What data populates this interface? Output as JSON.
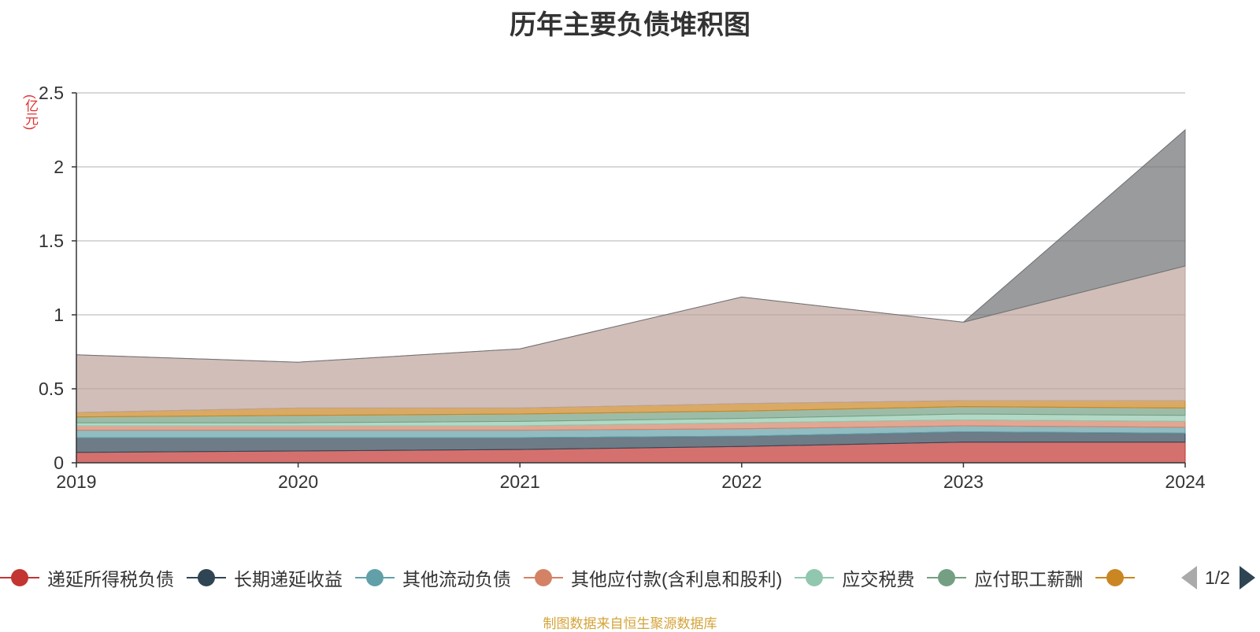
{
  "chart_data": {
    "type": "area",
    "stacked": true,
    "title": "历年主要负债堆积图",
    "unit_label": "(亿元)",
    "x": [
      "2019",
      "2020",
      "2021",
      "2022",
      "2023",
      "2024"
    ],
    "ylim": [
      0,
      2.5
    ],
    "yticks": [
      "0",
      "0.5",
      "1",
      "1.5",
      "2",
      "2.5"
    ],
    "grid": true,
    "legend_position": "bottom",
    "series": [
      {
        "name": "递延所得税负债",
        "color": "#c23531",
        "values": [
          0.07,
          0.08,
          0.09,
          0.11,
          0.14,
          0.14
        ]
      },
      {
        "name": "长期递延收益",
        "color": "#2f4554",
        "values": [
          0.1,
          0.09,
          0.08,
          0.07,
          0.07,
          0.06
        ]
      },
      {
        "name": "其他流动负债",
        "color": "#61a0a8",
        "values": [
          0.05,
          0.05,
          0.05,
          0.05,
          0.04,
          0.04
        ]
      },
      {
        "name": "其他应付款(含利息和股利)",
        "color": "#d48265",
        "values": [
          0.03,
          0.03,
          0.03,
          0.04,
          0.04,
          0.04
        ]
      },
      {
        "name": "应交税费",
        "color": "#91c7ae",
        "values": [
          0.02,
          0.02,
          0.03,
          0.03,
          0.04,
          0.04
        ]
      },
      {
        "name": "应付职工薪酬",
        "color": "#749f83",
        "values": [
          0.04,
          0.05,
          0.05,
          0.05,
          0.05,
          0.05
        ]
      },
      {
        "name": "",
        "color": "#ca8622",
        "values": [
          0.03,
          0.05,
          0.04,
          0.05,
          0.04,
          0.05
        ]
      },
      {
        "name": "",
        "color": "#bda29a",
        "values": [
          0.39,
          0.31,
          0.4,
          0.72,
          0.53,
          0.91
        ]
      },
      {
        "name": "",
        "color": "#6e7074",
        "values": [
          0.0,
          0.0,
          0.0,
          0.0,
          0.0,
          0.92
        ]
      }
    ]
  },
  "legend": {
    "items": [
      {
        "label": "递延所得税负债",
        "color": "#c23531"
      },
      {
        "label": "长期递延收益",
        "color": "#2f4554"
      },
      {
        "label": "其他流动负债",
        "color": "#61a0a8"
      },
      {
        "label": "其他应付款(含利息和股利)",
        "color": "#d48265"
      },
      {
        "label": "应交税费",
        "color": "#91c7ae"
      },
      {
        "label": "应付职工薪酬",
        "color": "#749f83"
      },
      {
        "label": "",
        "color": "#ca8622"
      }
    ],
    "page": "1/2"
  },
  "source_text": "制图数据来自恒生聚源数据库"
}
